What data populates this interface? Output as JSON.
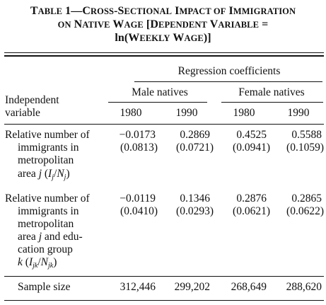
{
  "title": {
    "line1_a": "T",
    "line1_b": "ABLE",
    "line1_c": " 1—C",
    "line1_d": "ROSS",
    "line1_e": "-S",
    "line1_f": "ECTIONAL",
    "line1_g": " I",
    "line1_h": "MPACT OF",
    "line1_i": " I",
    "line1_j": "MMIGRATION",
    "line2_a": "ON",
    "line2_b": " N",
    "line2_c": "ATIVE",
    "line2_d": " W",
    "line2_e": "AGE",
    "line2_f": " [D",
    "line2_g": "EPENDENT",
    "line2_h": " V",
    "line2_i": "ARIABLE",
    "line2_j": " =",
    "line3_a": "ln(W",
    "line3_b": "EEKLY",
    "line3_c": " W",
    "line3_d": "AGE",
    "line3_e": ")]"
  },
  "header": {
    "regression_coefficients": "Regression coefficients",
    "male_natives": "Male natives",
    "female_natives": "Female natives",
    "independent": "Independent",
    "variable": "variable",
    "years": [
      "1980",
      "1990",
      "1980",
      "1990"
    ]
  },
  "rows": [
    {
      "label_lines": [
        "Relative number of",
        "immigrants in",
        "metropolitan"
      ],
      "label_last_prefix": "area ",
      "label_last_j": "j",
      "label_last_open": " (",
      "label_last_I": "I",
      "label_last_sub_j": "j",
      "label_last_slash": "/",
      "label_last_N": "N",
      "label_last_sub_j2": "j",
      "label_last_close": ")",
      "coefs": [
        "−0.0173",
        "0.2869",
        "0.4525",
        "0.5588"
      ],
      "ses": [
        "(0.0813)",
        "(0.0721)",
        "(0.0941)",
        "(0.1059)"
      ]
    },
    {
      "label_lines": [
        "Relative number of",
        "immigrants in",
        "metropolitan"
      ],
      "label_area_prefix": "area ",
      "label_area_j": "j",
      "label_area_suffix": " and edu-",
      "label_cation": "cation group",
      "label_last_k": "k",
      "label_last_open": " (",
      "label_last_I": "I",
      "label_last_sub": "jk",
      "label_last_slash": "/",
      "label_last_N": "N",
      "label_last_sub2": "jk",
      "label_last_close": ")",
      "coefs": [
        "−0.0119",
        "0.1346",
        "0.2876",
        "0.2865"
      ],
      "ses": [
        "(0.0410)",
        "(0.0293)",
        "(0.0621)",
        "(0.0622)"
      ]
    }
  ],
  "sample": {
    "label": "Sample size",
    "values": [
      "312,446",
      "299,202",
      "268,649",
      "288,620"
    ]
  }
}
